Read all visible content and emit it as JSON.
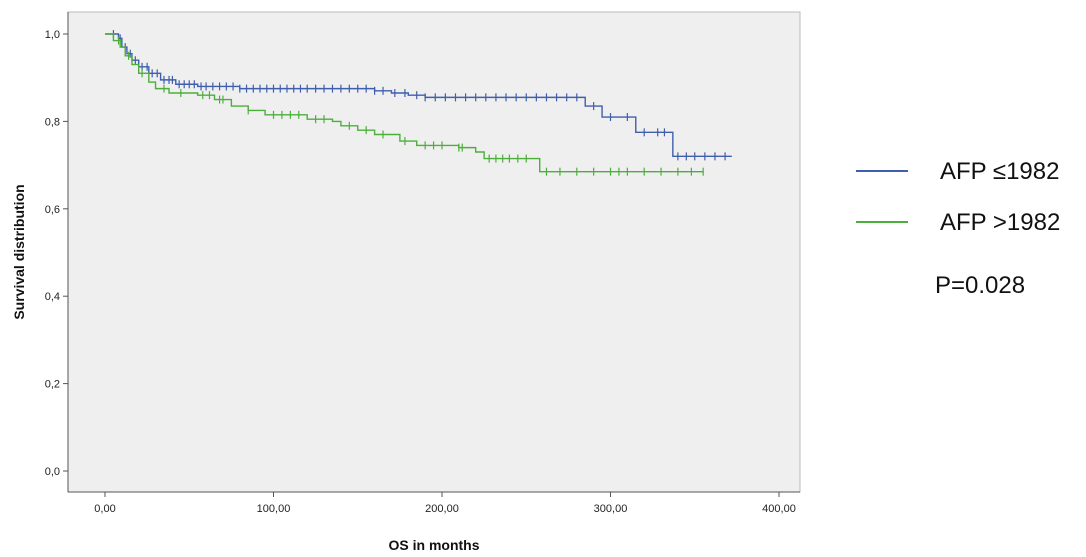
{
  "chart_data": {
    "type": "line",
    "subtype": "kaplan-meier",
    "xlabel": "OS in months",
    "ylabel": "Survival distribution",
    "xlim": [
      0,
      400
    ],
    "ylim": [
      0,
      1
    ],
    "x_ticks": [
      0,
      100,
      200,
      300,
      400
    ],
    "x_tick_labels": [
      "0,00",
      "100,00",
      "200,00",
      "300,00",
      "400,00"
    ],
    "y_ticks": [
      0,
      0.2,
      0.4,
      0.6,
      0.8,
      1.0
    ],
    "y_tick_labels": [
      "0,0",
      "0,2",
      "0,4",
      "0,6",
      "0,8",
      "1,0"
    ],
    "grid": false,
    "plot_background": "#efefef",
    "legend_position": "right",
    "annotation": "P=0.028",
    "series": [
      {
        "name": "AFP ≤1982",
        "color": "#3f5fad",
        "steps": [
          [
            0,
            1.0
          ],
          [
            6,
            1.0
          ],
          [
            8,
            0.99
          ],
          [
            10,
            0.97
          ],
          [
            13,
            0.955
          ],
          [
            16,
            0.94
          ],
          [
            20,
            0.925
          ],
          [
            26,
            0.91
          ],
          [
            33,
            0.895
          ],
          [
            42,
            0.885
          ],
          [
            55,
            0.88
          ],
          [
            80,
            0.875
          ],
          [
            160,
            0.87
          ],
          [
            170,
            0.865
          ],
          [
            180,
            0.86
          ],
          [
            190,
            0.855
          ],
          [
            270,
            0.855
          ],
          [
            285,
            0.835
          ],
          [
            295,
            0.81
          ],
          [
            315,
            0.775
          ],
          [
            337,
            0.72
          ],
          [
            372,
            0.72
          ]
        ],
        "censor_times": [
          5,
          9,
          12,
          15,
          18,
          22,
          25,
          28,
          31,
          35,
          38,
          40,
          44,
          47,
          50,
          53,
          57,
          60,
          64,
          68,
          72,
          76,
          80,
          84,
          88,
          92,
          96,
          100,
          104,
          108,
          112,
          116,
          120,
          125,
          130,
          135,
          140,
          145,
          150,
          155,
          160,
          165,
          172,
          178,
          185,
          190,
          196,
          202,
          208,
          214,
          220,
          226,
          232,
          238,
          244,
          250,
          256,
          262,
          268,
          274,
          280,
          290,
          300,
          310,
          320,
          328,
          332,
          340,
          345,
          350,
          356,
          362,
          368
        ]
      },
      {
        "name": "AFP >1982",
        "color": "#4caf3c",
        "steps": [
          [
            0,
            1.0
          ],
          [
            5,
            0.985
          ],
          [
            9,
            0.97
          ],
          [
            12,
            0.95
          ],
          [
            16,
            0.93
          ],
          [
            20,
            0.91
          ],
          [
            26,
            0.89
          ],
          [
            30,
            0.875
          ],
          [
            38,
            0.865
          ],
          [
            55,
            0.86
          ],
          [
            65,
            0.85
          ],
          [
            75,
            0.835
          ],
          [
            85,
            0.825
          ],
          [
            95,
            0.815
          ],
          [
            120,
            0.805
          ],
          [
            135,
            0.8
          ],
          [
            140,
            0.79
          ],
          [
            150,
            0.78
          ],
          [
            160,
            0.77
          ],
          [
            175,
            0.755
          ],
          [
            185,
            0.745
          ],
          [
            210,
            0.74
          ],
          [
            220,
            0.73
          ],
          [
            225,
            0.715
          ],
          [
            255,
            0.715
          ],
          [
            258,
            0.685
          ],
          [
            355,
            0.685
          ]
        ],
        "censor_times": [
          8,
          14,
          22,
          35,
          45,
          58,
          62,
          68,
          70,
          85,
          100,
          105,
          110,
          115,
          125,
          130,
          145,
          155,
          165,
          178,
          190,
          195,
          200,
          210,
          212,
          228,
          232,
          236,
          240,
          245,
          250,
          262,
          270,
          280,
          290,
          300,
          305,
          310,
          320,
          330,
          340,
          348,
          355
        ]
      }
    ]
  }
}
